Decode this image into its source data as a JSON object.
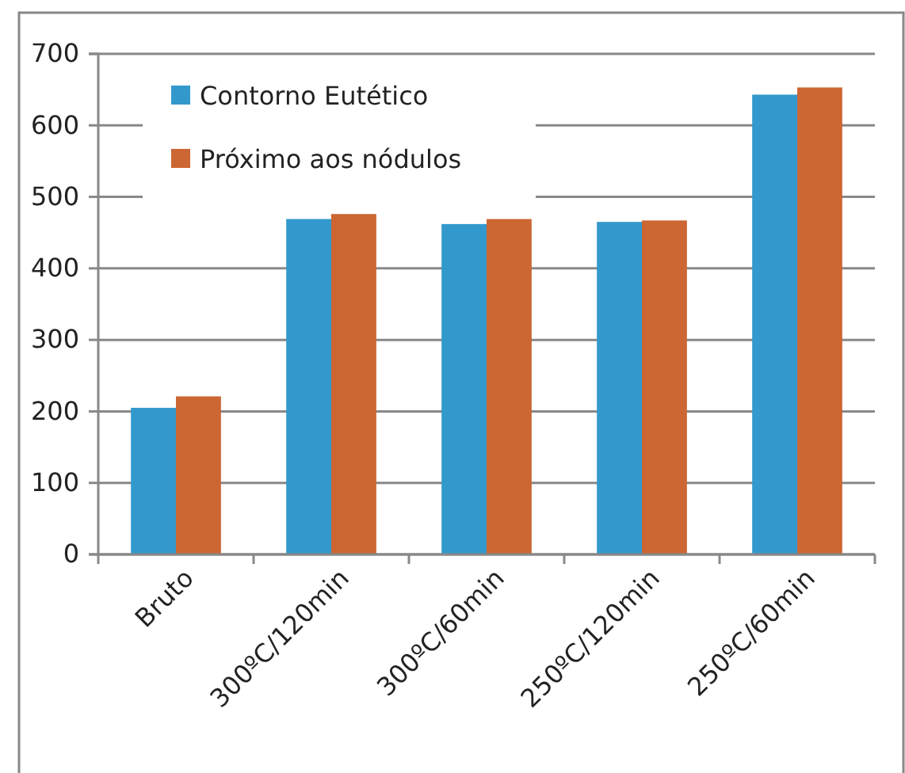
{
  "chart_data": {
    "type": "bar",
    "categories": [
      "Bruto",
      "300ºC/120min",
      "300ºC/60min",
      "250ºC/120min",
      "250ºC/60min"
    ],
    "series": [
      {
        "name": "Contorno Eutético",
        "color": "#3399cc",
        "values": [
          205,
          469,
          462,
          465,
          643
        ]
      },
      {
        "name": "Próximo aos nódulos",
        "color": "#cc6633",
        "values": [
          221,
          476,
          469,
          467,
          653
        ]
      }
    ],
    "ylim": [
      0,
      700
    ],
    "yticks": [
      0,
      100,
      200,
      300,
      400,
      500,
      600,
      700
    ],
    "grid": "y",
    "legend": "top left"
  }
}
